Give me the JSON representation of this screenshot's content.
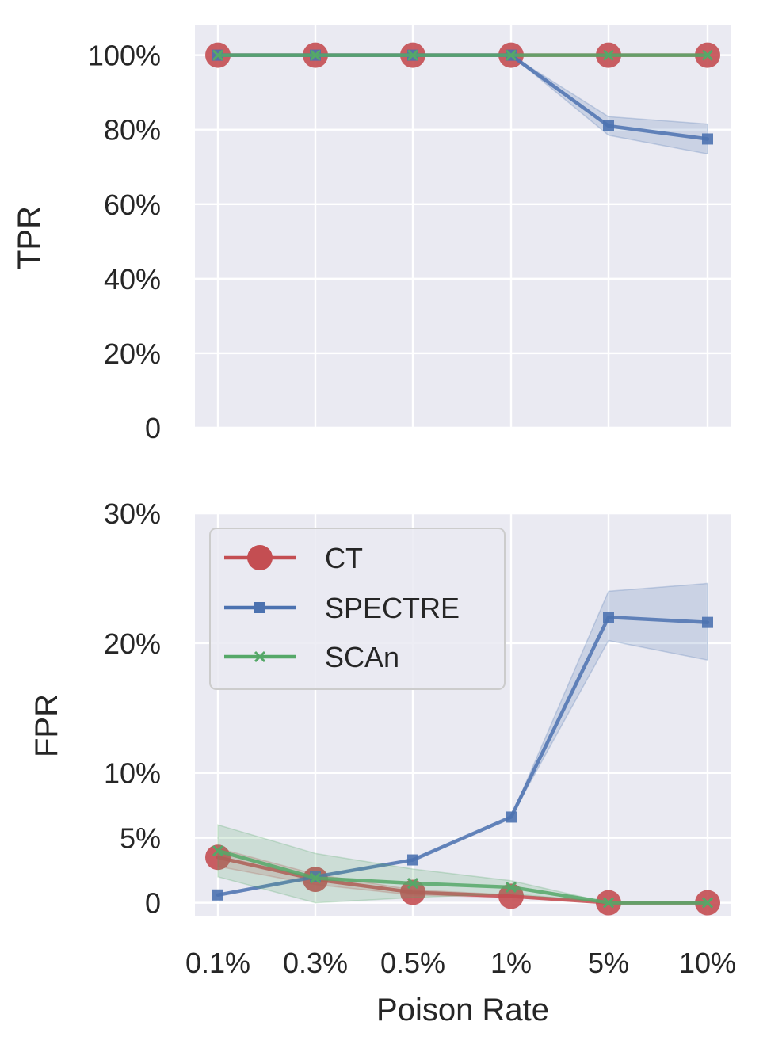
{
  "chart_data": [
    {
      "type": "line",
      "ylabel": "TPR",
      "xlabel": "",
      "categories": [
        "0.1%",
        "0.3%",
        "0.5%",
        "1%",
        "5%",
        "10%"
      ],
      "ylim": [
        0,
        108
      ],
      "yticks": [
        0,
        20,
        40,
        60,
        80,
        100
      ],
      "ytick_labels": [
        "0",
        "20%",
        "40%",
        "60%",
        "80%",
        "100%"
      ],
      "grid": true,
      "series": [
        {
          "name": "CT",
          "color": "#c44e52",
          "marker": "circle",
          "values": [
            100,
            100,
            100,
            100,
            100,
            100
          ],
          "lower": [
            100,
            100,
            100,
            100,
            100,
            100
          ],
          "upper": [
            100,
            100,
            100,
            100,
            100,
            100
          ]
        },
        {
          "name": "SPECTRE",
          "color": "#4c72b0",
          "marker": "square",
          "values": [
            100,
            100,
            100,
            100,
            81.0,
            77.5
          ],
          "lower": [
            100,
            100,
            100,
            100,
            78.5,
            73.5
          ],
          "upper": [
            100,
            100,
            100,
            100,
            83.5,
            81.5
          ]
        },
        {
          "name": "SCAn",
          "color": "#55a868",
          "marker": "x",
          "values": [
            100,
            100,
            100,
            100,
            100,
            100
          ],
          "lower": [
            100,
            100,
            100,
            100,
            100,
            100
          ],
          "upper": [
            100,
            100,
            100,
            100,
            100,
            100
          ]
        }
      ]
    },
    {
      "type": "line",
      "ylabel": "FPR",
      "xlabel": "Poison Rate",
      "categories": [
        "0.1%",
        "0.3%",
        "0.5%",
        "1%",
        "5%",
        "10%"
      ],
      "ylim": [
        -1,
        30
      ],
      "yticks": [
        0,
        5,
        10,
        20,
        30
      ],
      "ytick_labels": [
        "0",
        "5%",
        "10%",
        "20%",
        "30%"
      ],
      "grid": true,
      "legend": "top-left",
      "series": [
        {
          "name": "CT",
          "color": "#c44e52",
          "marker": "circle",
          "values": [
            3.5,
            1.8,
            0.8,
            0.5,
            0.0,
            0.0
          ],
          "lower": [
            2.8,
            1.4,
            0.6,
            0.4,
            0.0,
            0.0
          ],
          "upper": [
            4.2,
            2.2,
            1.0,
            0.6,
            0.0,
            0.0
          ]
        },
        {
          "name": "SPECTRE",
          "color": "#4c72b0",
          "marker": "square",
          "values": [
            0.6,
            2.0,
            3.3,
            6.6,
            22.0,
            21.6
          ],
          "lower": [
            0.6,
            2.0,
            3.3,
            6.6,
            20.2,
            18.7
          ],
          "upper": [
            0.6,
            2.0,
            3.3,
            6.6,
            24.0,
            24.6
          ]
        },
        {
          "name": "SCAn",
          "color": "#55a868",
          "marker": "x",
          "values": [
            4.0,
            1.9,
            1.5,
            1.2,
            0.0,
            0.0
          ],
          "lower": [
            2.0,
            0.0,
            0.4,
            0.7,
            0.0,
            0.0
          ],
          "upper": [
            6.0,
            3.8,
            2.6,
            1.7,
            0.0,
            0.0
          ]
        }
      ]
    }
  ]
}
